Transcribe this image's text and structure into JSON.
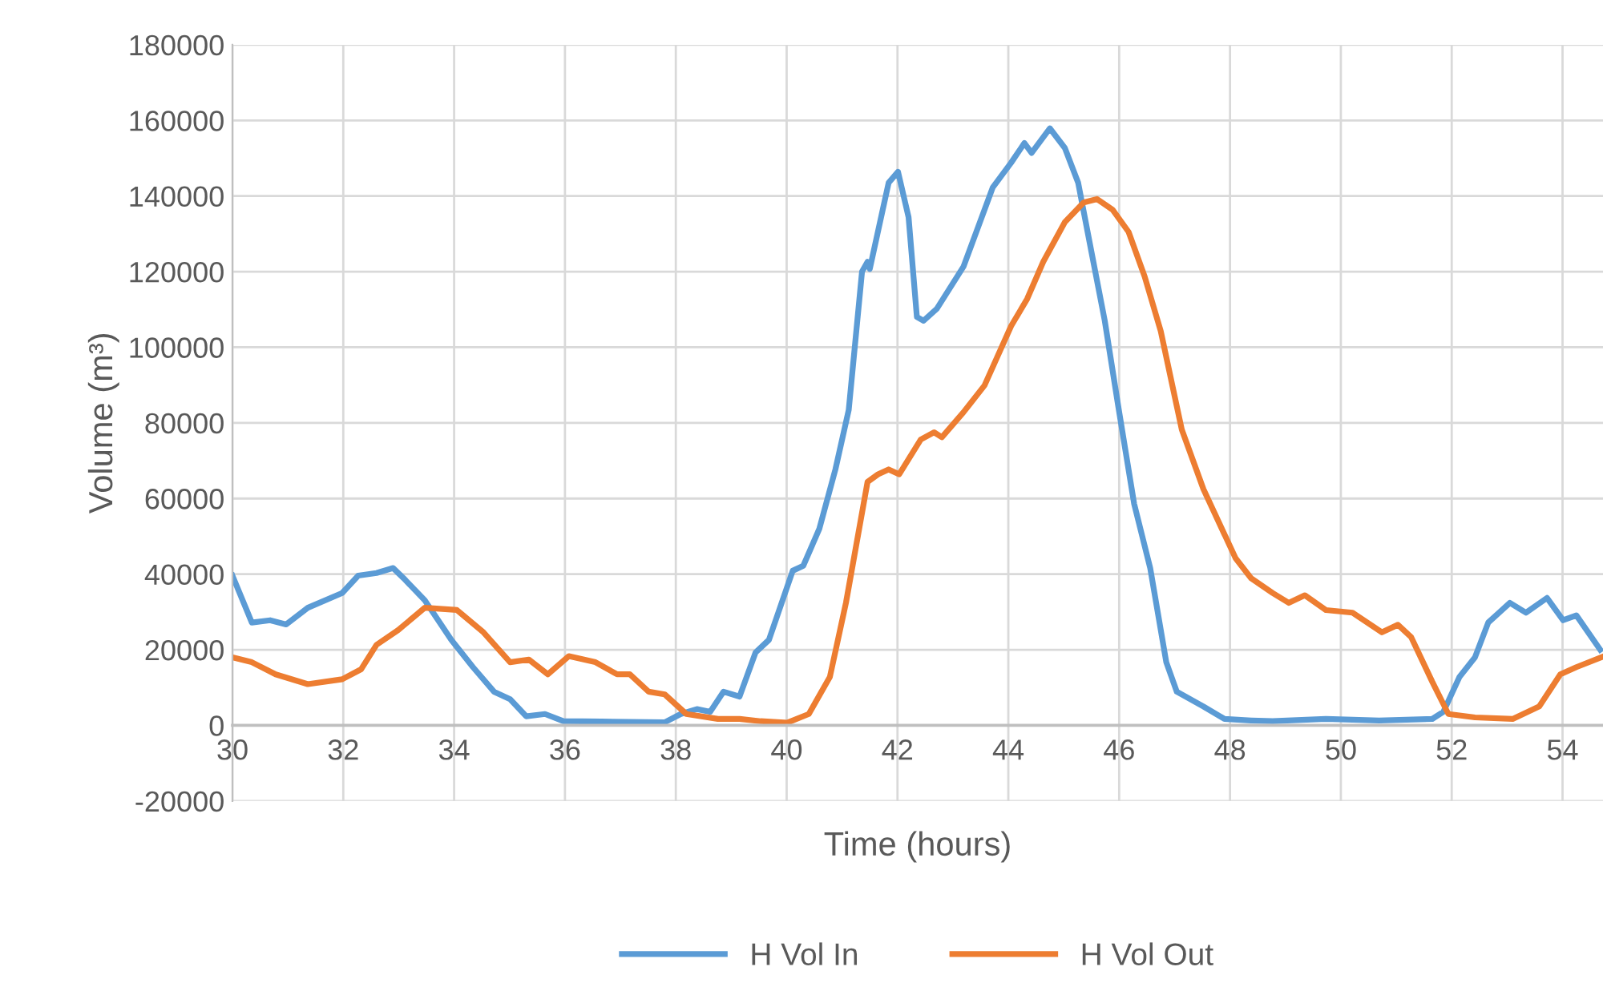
{
  "chart_data": {
    "type": "line",
    "xlabel": "Time (hours)",
    "ylabel": "Volume (m³)",
    "xlim": [
      30,
      54.73
    ],
    "xticks": [
      30,
      32,
      34,
      36,
      38,
      40,
      42,
      44,
      46,
      48,
      50,
      52,
      54
    ],
    "ylim": [
      -20000,
      180000
    ],
    "yticks": [
      -20000,
      0,
      20000,
      40000,
      60000,
      80000,
      100000,
      120000,
      140000,
      160000,
      180000
    ],
    "grid": true,
    "legend": "bottom",
    "marker": "none",
    "line_style": "solid",
    "series": [
      {
        "name": "H Vol In",
        "color": "#5b9bd5",
        "x": [
          30,
          30.35,
          30.68,
          30.97,
          31.36,
          31.98,
          32.27,
          32.6,
          32.9,
          33.09,
          33.47,
          33.95,
          34.34,
          34.72,
          35.01,
          35.3,
          35.64,
          35.97,
          36.65,
          37.8,
          38.09,
          38.38,
          38.62,
          38.86,
          39.15,
          39.44,
          39.68,
          40.11,
          40.3,
          40.59,
          40.88,
          41.12,
          41.36,
          41.46,
          41.5,
          41.84,
          42.01,
          42.2,
          42.35,
          42.47,
          42.71,
          43.19,
          43.72,
          44.05,
          44.29,
          44.42,
          44.75,
          45.02,
          45.26,
          45.5,
          45.74,
          45.98,
          46.27,
          46.56,
          46.85,
          47.04,
          47.52,
          47.9,
          48.38,
          48.77,
          49.73,
          50.69,
          51.65,
          51.85,
          52.14,
          52.42,
          52.66,
          53.05,
          53.34,
          53.72,
          54.01,
          54.25,
          54.68
        ],
        "values": [
          39600,
          27200,
          27800,
          26700,
          31100,
          35000,
          39600,
          40300,
          41600,
          38900,
          33100,
          22600,
          15400,
          8900,
          6900,
          2400,
          3000,
          1100,
          1000,
          800,
          3000,
          4300,
          3600,
          8900,
          7600,
          19300,
          22600,
          40900,
          42200,
          52000,
          67700,
          83400,
          120000,
          122600,
          120700,
          143500,
          146400,
          134400,
          108000,
          107000,
          110200,
          121300,
          142300,
          148800,
          154000,
          151400,
          157900,
          152700,
          143500,
          125200,
          107000,
          84700,
          58600,
          41600,
          16700,
          8900,
          5000,
          1700,
          1300,
          1100,
          1700,
          1300,
          1700,
          3600,
          12800,
          18000,
          27200,
          32400,
          29800,
          33700,
          27800,
          29100,
          20000
        ]
      },
      {
        "name": "H Vol Out",
        "color": "#ed7d31",
        "x": [
          30,
          30.35,
          30.78,
          31.36,
          31.98,
          32.32,
          32.6,
          32.99,
          33.47,
          34.05,
          34.53,
          35.01,
          35.35,
          35.69,
          36.07,
          36.55,
          36.94,
          37.17,
          37.51,
          37.8,
          38.19,
          38.76,
          39.15,
          39.53,
          40.01,
          40.4,
          40.78,
          41.07,
          41.46,
          41.65,
          41.84,
          42.03,
          42.42,
          42.66,
          42.8,
          43.19,
          43.57,
          44.05,
          44.34,
          44.63,
          45.02,
          45.36,
          45.6,
          45.88,
          46.17,
          46.46,
          46.75,
          47.13,
          47.52,
          48.1,
          48.38,
          48.77,
          49.06,
          49.35,
          49.73,
          50.21,
          50.74,
          51.03,
          51.27,
          51.65,
          51.94,
          52.42,
          53.1,
          53.58,
          53.96,
          54.25,
          54.7
        ],
        "values": [
          18000,
          16700,
          13500,
          10900,
          12200,
          14800,
          21300,
          25200,
          31100,
          30500,
          24600,
          16700,
          17400,
          13500,
          18300,
          16700,
          13500,
          13500,
          8900,
          8200,
          3000,
          1700,
          1700,
          1100,
          700,
          3000,
          12800,
          32400,
          64400,
          66400,
          67700,
          66400,
          75600,
          77500,
          76200,
          82800,
          89900,
          105600,
          112800,
          122600,
          133100,
          138300,
          139200,
          136400,
          130500,
          118700,
          104300,
          78200,
          62500,
          44200,
          38900,
          35000,
          32400,
          34400,
          30500,
          29800,
          24600,
          26600,
          23300,
          11500,
          3000,
          2100,
          1700,
          5000,
          13500,
          15400,
          18000
        ]
      }
    ]
  }
}
